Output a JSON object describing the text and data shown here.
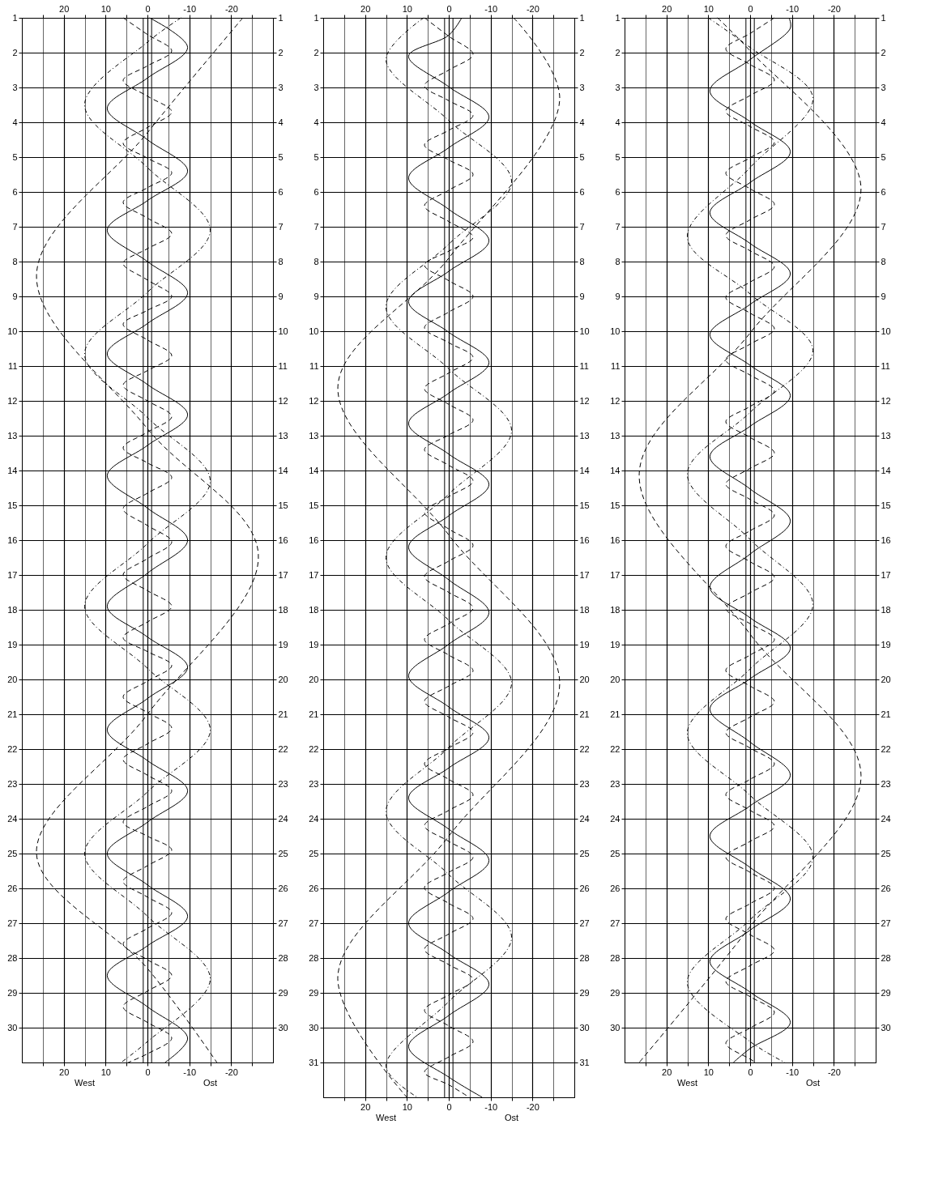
{
  "chart_data": [
    {
      "type": "line",
      "orientation": "horizontal",
      "grid": true,
      "annotations": [
        "West",
        "Ost"
      ],
      "xlim": [
        30,
        -30
      ],
      "xticks": [
        {
          "value": 25,
          "label": null
        },
        20,
        {
          "value": 15,
          "label": null
        },
        10,
        {
          "value": 5,
          "label": null
        },
        0,
        {
          "value": -5,
          "label": null
        },
        -10,
        {
          "value": -15,
          "label": null
        },
        -20,
        {
          "value": -25,
          "label": null
        }
      ],
      "x2lim": [
        30,
        -30
      ],
      "x2ticks": [
        {
          "value": 25,
          "label": null
        },
        20,
        {
          "value": 15,
          "label": null
        },
        10,
        {
          "value": 5,
          "label": null
        },
        0,
        {
          "value": -5,
          "label": null
        },
        -10,
        {
          "value": -15,
          "label": null
        },
        -20,
        {
          "value": -25,
          "label": null
        }
      ],
      "ylim": [
        31,
        1
      ],
      "yticks": [
        1,
        2,
        3,
        4,
        5,
        6,
        7,
        8,
        9,
        10,
        11,
        12,
        13,
        14,
        15,
        16,
        17,
        18,
        19,
        20,
        21,
        22,
        23,
        24,
        25,
        26,
        27,
        28,
        29,
        30
      ],
      "y2lim": [
        31,
        1
      ],
      "y2ticks": [
        1,
        2,
        3,
        4,
        5,
        6,
        7,
        8,
        9,
        10,
        11,
        12,
        13,
        14,
        15,
        16,
        17,
        18,
        19,
        20,
        21,
        22,
        23,
        24,
        25,
        26,
        27,
        28,
        29,
        30
      ],
      "ref_lines": [
        {
          "axis": "x",
          "value": 1
        },
        {
          "axis": "x",
          "value": -1
        }
      ],
      "series": [
        {
          "color": "#000000",
          "line_style": "dashed",
          "x": [
            1,
            1.48,
            1.95,
            2.38,
            2.8,
            3.25,
            3.7,
            4.15,
            4.6,
            5.03,
            5.45,
            5.88,
            6.3,
            6.75,
            7.2,
            7.63,
            8.05,
            8.53,
            9.0,
            9.4,
            9.8,
            10.25,
            10.7,
            11.13,
            11.55,
            12.0,
            12.45,
            12.9,
            13.35,
            13.78,
            14.2,
            14.65,
            15.1,
            15.58,
            16.05,
            16.53,
            17.0,
            17.45,
            17.9,
            18.35,
            18.8,
            19.2,
            19.6,
            20.05,
            20.5,
            20.95,
            21.4,
            21.85,
            22.3,
            22.75,
            23.2,
            23.65,
            24.1,
            24.5,
            24.9,
            25.35,
            25.8,
            26.25,
            26.7,
            27.15,
            27.6,
            28.05,
            28.5,
            28.95,
            29.4,
            29.85,
            30.3,
            30.75,
            31
          ],
          "values": [
            5.8,
            0,
            -5.8,
            0,
            5.8,
            0,
            -5.8,
            0,
            5.8,
            0,
            -5.8,
            0,
            5.8,
            0,
            -5.8,
            0,
            5.8,
            0,
            -5.8,
            0,
            5.8,
            0,
            -5.8,
            0,
            5.8,
            0,
            -5.8,
            0,
            5.8,
            0,
            -5.8,
            0,
            5.8,
            0,
            -5.8,
            0,
            5.8,
            0,
            -5.8,
            0,
            5.8,
            0,
            -5.8,
            0,
            5.8,
            0,
            -5.8,
            0,
            5.8,
            0,
            -5.8,
            0,
            5.8,
            0,
            -5.8,
            0,
            5.8,
            0,
            -5.8,
            0,
            5.8,
            0,
            -5.8,
            0,
            5.8,
            0,
            -5.8,
            0,
            4.6
          ]
        },
        {
          "color": "#000000",
          "line_style": "solid",
          "x": [
            1,
            1.85,
            2.73,
            3.6,
            4.5,
            5.4,
            6.25,
            7.1,
            8.0,
            8.9,
            9.78,
            10.65,
            11.53,
            12.4,
            13.28,
            14.15,
            15.08,
            16.0,
            16.95,
            17.9,
            18.78,
            19.65,
            20.55,
            21.45,
            22.33,
            23.2,
            24.1,
            25.0,
            25.9,
            26.8,
            27.65,
            28.5,
            29.4,
            30.3,
            31
          ],
          "values": [
            -0.5,
            -9.6,
            0,
            9.6,
            0,
            -9.6,
            0,
            9.6,
            0,
            -9.6,
            0,
            9.6,
            0,
            -9.6,
            0,
            9.6,
            0,
            -9.6,
            0,
            9.6,
            0,
            -9.6,
            0,
            9.6,
            0,
            -9.6,
            0,
            9.6,
            0,
            -9.6,
            0,
            9.6,
            0,
            -9.6,
            -4.2
          ]
        },
        {
          "color": "#000000",
          "line_style": "dotted",
          "x": [
            1,
            1.7,
            3.5,
            5.3,
            7.1,
            8.88,
            10.65,
            12.48,
            14.3,
            16.1,
            17.9,
            19.68,
            21.45,
            23.23,
            25.0,
            26.8,
            28.6,
            30.4,
            31
          ],
          "values": [
            -8,
            0,
            15,
            0,
            -15,
            0,
            15,
            0,
            -15,
            0,
            15,
            0,
            -15,
            0,
            15,
            0,
            -15,
            0,
            6.3
          ]
        },
        {
          "color": "#000000",
          "line_style": "dashed",
          "x": [
            1,
            4.3,
            8.4,
            12.8,
            16.4,
            21.0,
            25.0,
            28.3,
            31
          ],
          "values": [
            -22.8,
            0,
            26.5,
            0,
            -26.5,
            0,
            26.5,
            0,
            -16.6
          ]
        }
      ]
    },
    {
      "type": "line",
      "orientation": "horizontal",
      "grid": true,
      "annotations": [
        "West",
        "Ost"
      ],
      "xlim": [
        30,
        -30
      ],
      "xticks": [
        {
          "value": 25,
          "label": null
        },
        20,
        {
          "value": 15,
          "label": null
        },
        10,
        {
          "value": 5,
          "label": null
        },
        0,
        {
          "value": -5,
          "label": null
        },
        -10,
        {
          "value": -15,
          "label": null
        },
        -20,
        {
          "value": -25,
          "label": null
        }
      ],
      "x2lim": [
        30,
        -30
      ],
      "x2ticks": [
        {
          "value": 25,
          "label": null
        },
        20,
        {
          "value": 15,
          "label": null
        },
        10,
        {
          "value": 5,
          "label": null
        },
        0,
        {
          "value": -5,
          "label": null
        },
        -10,
        {
          "value": -15,
          "label": null
        },
        -20,
        {
          "value": -25,
          "label": null
        }
      ],
      "ylim": [
        32,
        1
      ],
      "yticks": [
        1,
        2,
        3,
        4,
        5,
        6,
        7,
        8,
        9,
        10,
        11,
        12,
        13,
        14,
        15,
        16,
        17,
        18,
        19,
        20,
        21,
        22,
        23,
        24,
        25,
        26,
        27,
        28,
        29,
        30,
        31
      ],
      "y2lim": [
        32,
        1
      ],
      "y2ticks": [
        1,
        2,
        3,
        4,
        5,
        6,
        7,
        8,
        9,
        10,
        11,
        12,
        13,
        14,
        15,
        16,
        17,
        18,
        19,
        20,
        21,
        22,
        23,
        24,
        25,
        26,
        27,
        28,
        29,
        30,
        31
      ],
      "ref_lines": [
        {
          "axis": "x",
          "value": 1
        },
        {
          "axis": "x",
          "value": -1
        }
      ],
      "series": [
        {
          "color": "#000000",
          "line_style": "dashed",
          "x": [
            1,
            1.53,
            2.05,
            2.5,
            2.95,
            3.38,
            3.8,
            4.23,
            4.65,
            5.08,
            5.5,
            5.95,
            6.4,
            6.85,
            7.3,
            7.7,
            8.1,
            8.55,
            9.0,
            9.45,
            9.9,
            10.33,
            10.75,
            11.2,
            11.65,
            12.1,
            12.55,
            12.98,
            13.4,
            13.85,
            14.3,
            14.75,
            15.2,
            15.68,
            16.15,
            16.6,
            17.05,
            17.5,
            17.95,
            18.4,
            18.85,
            19.3,
            19.75,
            20.19,
            20.63,
            21.08,
            21.52,
            21.97,
            22.42,
            22.87,
            23.32,
            23.76,
            24.2,
            24.65,
            25.1,
            25.54,
            25.98,
            26.43,
            26.87,
            27.31,
            27.75,
            28.19,
            28.62,
            29.06,
            29.5,
            29.95,
            30.4,
            30.84,
            31.28,
            31.64,
            32
          ],
          "values": [
            5.8,
            0,
            -5.8,
            0,
            5.8,
            0,
            -5.8,
            0,
            5.8,
            0,
            -5.8,
            0,
            5.8,
            0,
            -5.8,
            0,
            5.8,
            0,
            -5.8,
            0,
            5.8,
            0,
            -5.8,
            0,
            5.8,
            0,
            -5.8,
            0,
            5.8,
            0,
            -5.8,
            0,
            5.8,
            0,
            -5.8,
            0,
            5.8,
            0,
            -5.8,
            0,
            5.8,
            0,
            -5.8,
            0,
            5.8,
            0,
            -5.8,
            0,
            5.8,
            0,
            -5.8,
            0,
            5.8,
            0,
            -5.8,
            0,
            5.8,
            0,
            -5.8,
            0,
            5.8,
            0,
            -5.8,
            0,
            5.8,
            0,
            -5.8,
            0,
            5.8,
            0,
            -4.9
          ]
        },
        {
          "color": "#000000",
          "line_style": "solid",
          "x": [
            1,
            1.5,
            2.1,
            2.98,
            3.85,
            4.73,
            5.6,
            6.5,
            7.4,
            8.28,
            9.15,
            10.03,
            10.9,
            11.78,
            12.65,
            13.53,
            14.4,
            15.3,
            16.2,
            17.14,
            18.08,
            18.99,
            19.9,
            20.79,
            21.67,
            22.54,
            23.4,
            24.3,
            25.2,
            26.1,
            27.0,
            27.88,
            28.75,
            29.65,
            30.54,
            31.42,
            32
          ],
          "values": [
            -3.1,
            0,
            9.6,
            0,
            -9.6,
            0,
            9.6,
            0,
            -9.6,
            0,
            9.6,
            0,
            -9.6,
            0,
            9.6,
            0,
            -9.6,
            0,
            9.6,
            0,
            -9.6,
            0,
            9.6,
            0,
            -9.6,
            0,
            9.6,
            0,
            -9.6,
            0,
            9.6,
            0,
            -9.6,
            0,
            9.6,
            0,
            -8.0
          ]
        },
        {
          "color": "#000000",
          "line_style": "dotted",
          "x": [
            1,
            2.2,
            3.95,
            5.7,
            7.5,
            9.3,
            11.08,
            12.85,
            14.68,
            16.5,
            18.3,
            20.1,
            21.95,
            23.8,
            25.6,
            27.4,
            29.25,
            31.1,
            32
          ],
          "values": [
            6,
            15,
            0,
            -15,
            0,
            15,
            0,
            -15,
            0,
            15,
            0,
            -15,
            0,
            15,
            0,
            -15,
            0,
            15,
            7.5
          ]
        },
        {
          "color": "#000000",
          "line_style": "dashed",
          "x": [
            1,
            3.35,
            7.9,
            11.6,
            15.85,
            20.1,
            24.5,
            28.5,
            32
          ],
          "values": [
            -15.5,
            -26.5,
            0,
            26.5,
            0,
            -26.5,
            0,
            26.5,
            10
          ]
        }
      ]
    },
    {
      "type": "line",
      "orientation": "horizontal",
      "grid": true,
      "annotations": [
        "West",
        "Ost"
      ],
      "xlim": [
        30,
        -30
      ],
      "xticks": [
        {
          "value": 25,
          "label": null
        },
        20,
        {
          "value": 15,
          "label": null
        },
        10,
        {
          "value": 5,
          "label": null
        },
        0,
        {
          "value": -5,
          "label": null
        },
        -10,
        {
          "value": -15,
          "label": null
        },
        -20,
        {
          "value": -25,
          "label": null
        }
      ],
      "x2lim": [
        30,
        -30
      ],
      "x2ticks": [
        {
          "value": 25,
          "label": null
        },
        20,
        {
          "value": 15,
          "label": null
        },
        10,
        {
          "value": 5,
          "label": null
        },
        0,
        {
          "value": -5,
          "label": null
        },
        -10,
        {
          "value": -15,
          "label": null
        },
        -20,
        {
          "value": -25,
          "label": null
        }
      ],
      "ylim": [
        31,
        1
      ],
      "yticks": [
        1,
        2,
        3,
        4,
        5,
        6,
        7,
        8,
        9,
        10,
        11,
        12,
        13,
        14,
        15,
        16,
        17,
        18,
        19,
        20,
        21,
        22,
        23,
        24,
        25,
        26,
        27,
        28,
        29,
        30
      ],
      "y2lim": [
        31,
        1
      ],
      "y2ticks": [
        1,
        2,
        3,
        4,
        5,
        6,
        7,
        8,
        9,
        10,
        11,
        12,
        13,
        14,
        15,
        16,
        17,
        18,
        19,
        20,
        21,
        22,
        23,
        24,
        25,
        26,
        27,
        28,
        29,
        30
      ],
      "ref_lines": [
        {
          "axis": "x",
          "value": 1
        },
        {
          "axis": "x",
          "value": -1
        }
      ],
      "series": [
        {
          "color": "#000000",
          "line_style": "dashed",
          "x": [
            1.0,
            1.45,
            1.89,
            2.34,
            2.79,
            3.23,
            3.68,
            4.12,
            4.57,
            5.02,
            5.46,
            5.91,
            6.36,
            6.8,
            7.25,
            7.69,
            8.14,
            8.59,
            9.03,
            9.48,
            9.93,
            10.37,
            10.82,
            11.26,
            11.71,
            12.16,
            12.6,
            13.05,
            13.5,
            13.94,
            14.39,
            14.83,
            15.28,
            15.73,
            16.17,
            16.62,
            17.07,
            17.51,
            17.96,
            18.4,
            18.85,
            19.3,
            19.74,
            20.19,
            20.64,
            21.08,
            21.53,
            21.97,
            22.42,
            22.87,
            23.31,
            23.76,
            24.21,
            24.65,
            25.1,
            25.54,
            25.99,
            26.44,
            26.88,
            27.33,
            27.78,
            28.22,
            28.67,
            29.11,
            29.56,
            30.01,
            30.45,
            30.9,
            31
          ],
          "values": [
            -5.8,
            0,
            5.8,
            0,
            -5.8,
            0,
            5.8,
            0,
            -5.8,
            0,
            5.8,
            0,
            -5.8,
            0,
            5.8,
            0,
            -5.8,
            0,
            5.8,
            0,
            -5.8,
            0,
            5.8,
            0,
            -5.8,
            0,
            5.8,
            0,
            -5.8,
            0,
            5.8,
            0,
            -5.8,
            0,
            5.8,
            0,
            -5.8,
            0,
            5.8,
            0,
            -5.8,
            0,
            5.8,
            0,
            -5.8,
            0,
            5.8,
            0,
            -5.8,
            0,
            5.8,
            0,
            -5.8,
            0,
            5.8,
            0,
            -5.8,
            0,
            5.8,
            0,
            -5.8,
            0,
            5.8,
            0,
            -5.8,
            0,
            5.8,
            0,
            -1.3
          ]
        },
        {
          "color": "#000000",
          "line_style": "solid",
          "x": [
            1,
            1.3,
            2.2,
            3.1,
            3.98,
            4.85,
            5.73,
            6.6,
            7.48,
            8.35,
            9.23,
            10.1,
            10.98,
            11.85,
            12.73,
            13.6,
            14.53,
            15.45,
            16.4,
            17.35,
            18.23,
            19.1,
            19.98,
            20.85,
            21.8,
            22.75,
            23.63,
            24.5,
            25.4,
            26.3,
            27.2,
            28.1,
            28.98,
            29.85,
            30.6,
            31
          ],
          "values": [
            -9.3,
            -9.6,
            0,
            9.6,
            0,
            -9.6,
            0,
            9.6,
            0,
            -9.6,
            0,
            9.6,
            0,
            -9.6,
            0,
            9.6,
            0,
            -9.6,
            0,
            9.6,
            0,
            -9.6,
            0,
            9.6,
            0,
            -9.6,
            0,
            9.6,
            0,
            -9.6,
            0,
            9.6,
            0,
            -9.6,
            0,
            4
          ]
        },
        {
          "color": "#000000",
          "line_style": "dotted",
          "x": [
            1,
            1.85,
            3.3,
            5.3,
            7.3,
            8.93,
            10.55,
            12.33,
            14.1,
            15.98,
            17.85,
            19.7,
            21.55,
            23.33,
            25.1,
            26.9,
            28.7,
            30.4,
            31
          ],
          "values": [
            10,
            0,
            -15,
            0,
            15,
            0,
            -15,
            0,
            15,
            0,
            -15,
            0,
            15,
            0,
            -15,
            0,
            15,
            0,
            -8.3
          ]
        },
        {
          "color": "#000000",
          "line_style": "dashed",
          "x": [
            1,
            1.95,
            5.9,
            10.05,
            14.1,
            18.7,
            22.75,
            27.1,
            31
          ],
          "values": [
            7.8,
            0,
            -26.5,
            0,
            26.5,
            0,
            -26.5,
            0,
            26.5
          ]
        }
      ]
    }
  ]
}
